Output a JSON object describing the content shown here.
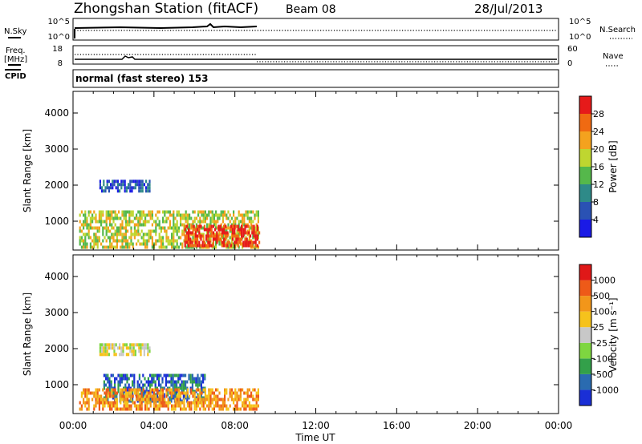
{
  "header": {
    "station": "Zhongshan Station (fitACF)",
    "beam": "Beam 08",
    "date": "28/Jul/2013"
  },
  "left_labels": {
    "nsky": "N.Sky",
    "freq_line1": "Freq.",
    "freq_line2": "[MHz]",
    "cpid": "CPID",
    "nsky_top": "10^5",
    "nsky_bottom": "10^0",
    "freq_top": "18",
    "freq_bottom": "8"
  },
  "right_labels": {
    "nsearch": "N.Search",
    "nave": "Nave",
    "nsearch_top": "10^5",
    "nsearch_bottom": "10^0",
    "nave_top": "60",
    "nave_bottom": "0"
  },
  "cpid_text": "normal (fast stereo) 153",
  "x_axis": {
    "label": "Time UT",
    "ticks": [
      "00:00",
      "04:00",
      "08:00",
      "12:00",
      "16:00",
      "20:00",
      "00:00"
    ]
  },
  "chart_data": [
    {
      "type": "heatmap",
      "title": "",
      "quantity": "Power",
      "ylabel": "Slant Range [km]",
      "xlabel": "",
      "yticks": [
        1000,
        2000,
        3000,
        4000
      ],
      "ylim": [
        200,
        4600
      ],
      "colorbar_label": "Power [dB]",
      "colorbar_ticks": [
        "4",
        "8",
        "12",
        "16",
        "20",
        "24",
        "28"
      ],
      "colorbar_colors": [
        "#1a1ae6",
        "#2a52b4",
        "#2e8a88",
        "#55b84b",
        "#bfd630",
        "#f4a21e",
        "#f06a12",
        "#e61a1a"
      ],
      "data_time_range_hours": [
        0,
        9.2
      ],
      "regions": [
        {
          "t0": 1.3,
          "t1": 3.8,
          "r0": 1800,
          "r1": 2150,
          "level": 1
        },
        {
          "t0": 0.3,
          "t1": 9.2,
          "r0": 300,
          "r1": 1300,
          "level": 4
        },
        {
          "t0": 5.5,
          "t1": 9.2,
          "r0": 300,
          "r1": 900,
          "level": 7
        }
      ]
    },
    {
      "type": "heatmap",
      "title": "",
      "quantity": "Velocity",
      "ylabel": "Slant Range [km]",
      "xlabel": "Time UT",
      "yticks": [
        1000,
        2000,
        3000,
        4000
      ],
      "ylim": [
        200,
        4600
      ],
      "colorbar_label": "Velocity [m s⁻¹]",
      "colorbar_ticks": [
        "1000",
        "500",
        "100",
        "25",
        "-25",
        "-100",
        "-500",
        "-1000"
      ],
      "colorbar_colors": [
        "#1a2fd6",
        "#2a6bb0",
        "#33a04a",
        "#7ed640",
        "#c8c8c8",
        "#f6c21c",
        "#f2961a",
        "#ee5a18",
        "#e01818"
      ],
      "data_time_range_hours": [
        0,
        9.2
      ],
      "regions": [
        {
          "t0": 1.3,
          "t1": 3.8,
          "r0": 1800,
          "r1": 2150,
          "level": 4
        },
        {
          "t0": 1.5,
          "t1": 6.5,
          "r0": 500,
          "r1": 1300,
          "level": 1
        },
        {
          "t0": 0.3,
          "t1": 9.2,
          "r0": 300,
          "r1": 900,
          "level": 6
        }
      ]
    }
  ]
}
